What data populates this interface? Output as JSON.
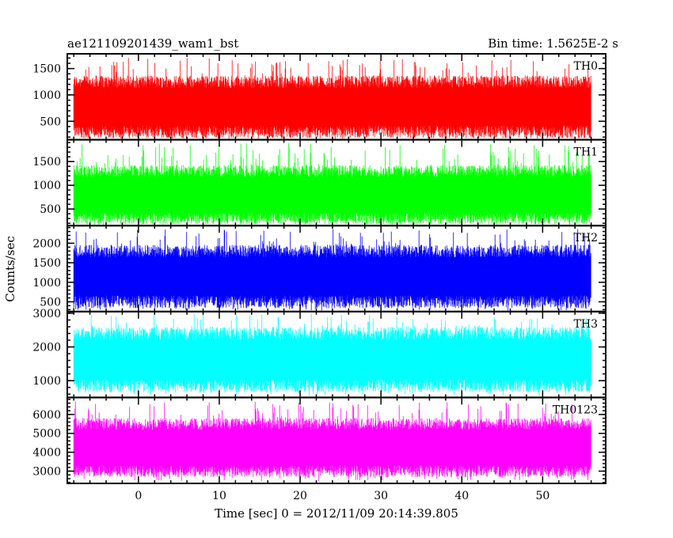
{
  "chart_data": {
    "type": "line",
    "title_left": "ae121109201439_wam1_bst",
    "title_right": "Bin time: 1.5625E-2 s",
    "xlabel": "Time [sec] 0 = 2012/11/09 20:14:39.805",
    "ylabel": "Counts/sec",
    "xlim": [
      -8.8,
      57.8
    ],
    "xticks": [
      0,
      10,
      20,
      30,
      40,
      50
    ],
    "x_data_range": [
      -8,
      56
    ],
    "panels": [
      {
        "name": "TH0",
        "color": "#ff0000",
        "ylim": [
          150,
          1780
        ],
        "yticks": [
          500,
          1000,
          1500
        ],
        "base_low": 300,
        "base_high": 1250,
        "spike_max": 1720,
        "dip_min": 160
      },
      {
        "name": "TH1",
        "color": "#00ff00",
        "ylim": [
          150,
          1960
        ],
        "yticks": [
          500,
          1000,
          1500
        ],
        "base_low": 300,
        "base_high": 1300,
        "spike_max": 1900,
        "dip_min": 170
      },
      {
        "name": "TH2",
        "color": "#0000ff",
        "ylim": [
          250,
          2450
        ],
        "yticks": [
          500,
          1000,
          1500,
          2000
        ],
        "base_low": 500,
        "base_high": 1800,
        "spike_max": 2400,
        "dip_min": 270
      },
      {
        "name": "TH3",
        "color": "#00ffff",
        "ylim": [
          500,
          3050
        ],
        "yticks": [
          1000,
          2000,
          3000
        ],
        "base_low": 850,
        "base_high": 2400,
        "spike_max": 3000,
        "dip_min": 560
      },
      {
        "name": "TH0123",
        "color": "#ff00ff",
        "ylim": [
          2350,
          6900
        ],
        "yticks": [
          3000,
          4000,
          5000,
          6000
        ],
        "base_low": 3000,
        "base_high": 5500,
        "spike_max": 6750,
        "dip_min": 2450
      }
    ]
  }
}
